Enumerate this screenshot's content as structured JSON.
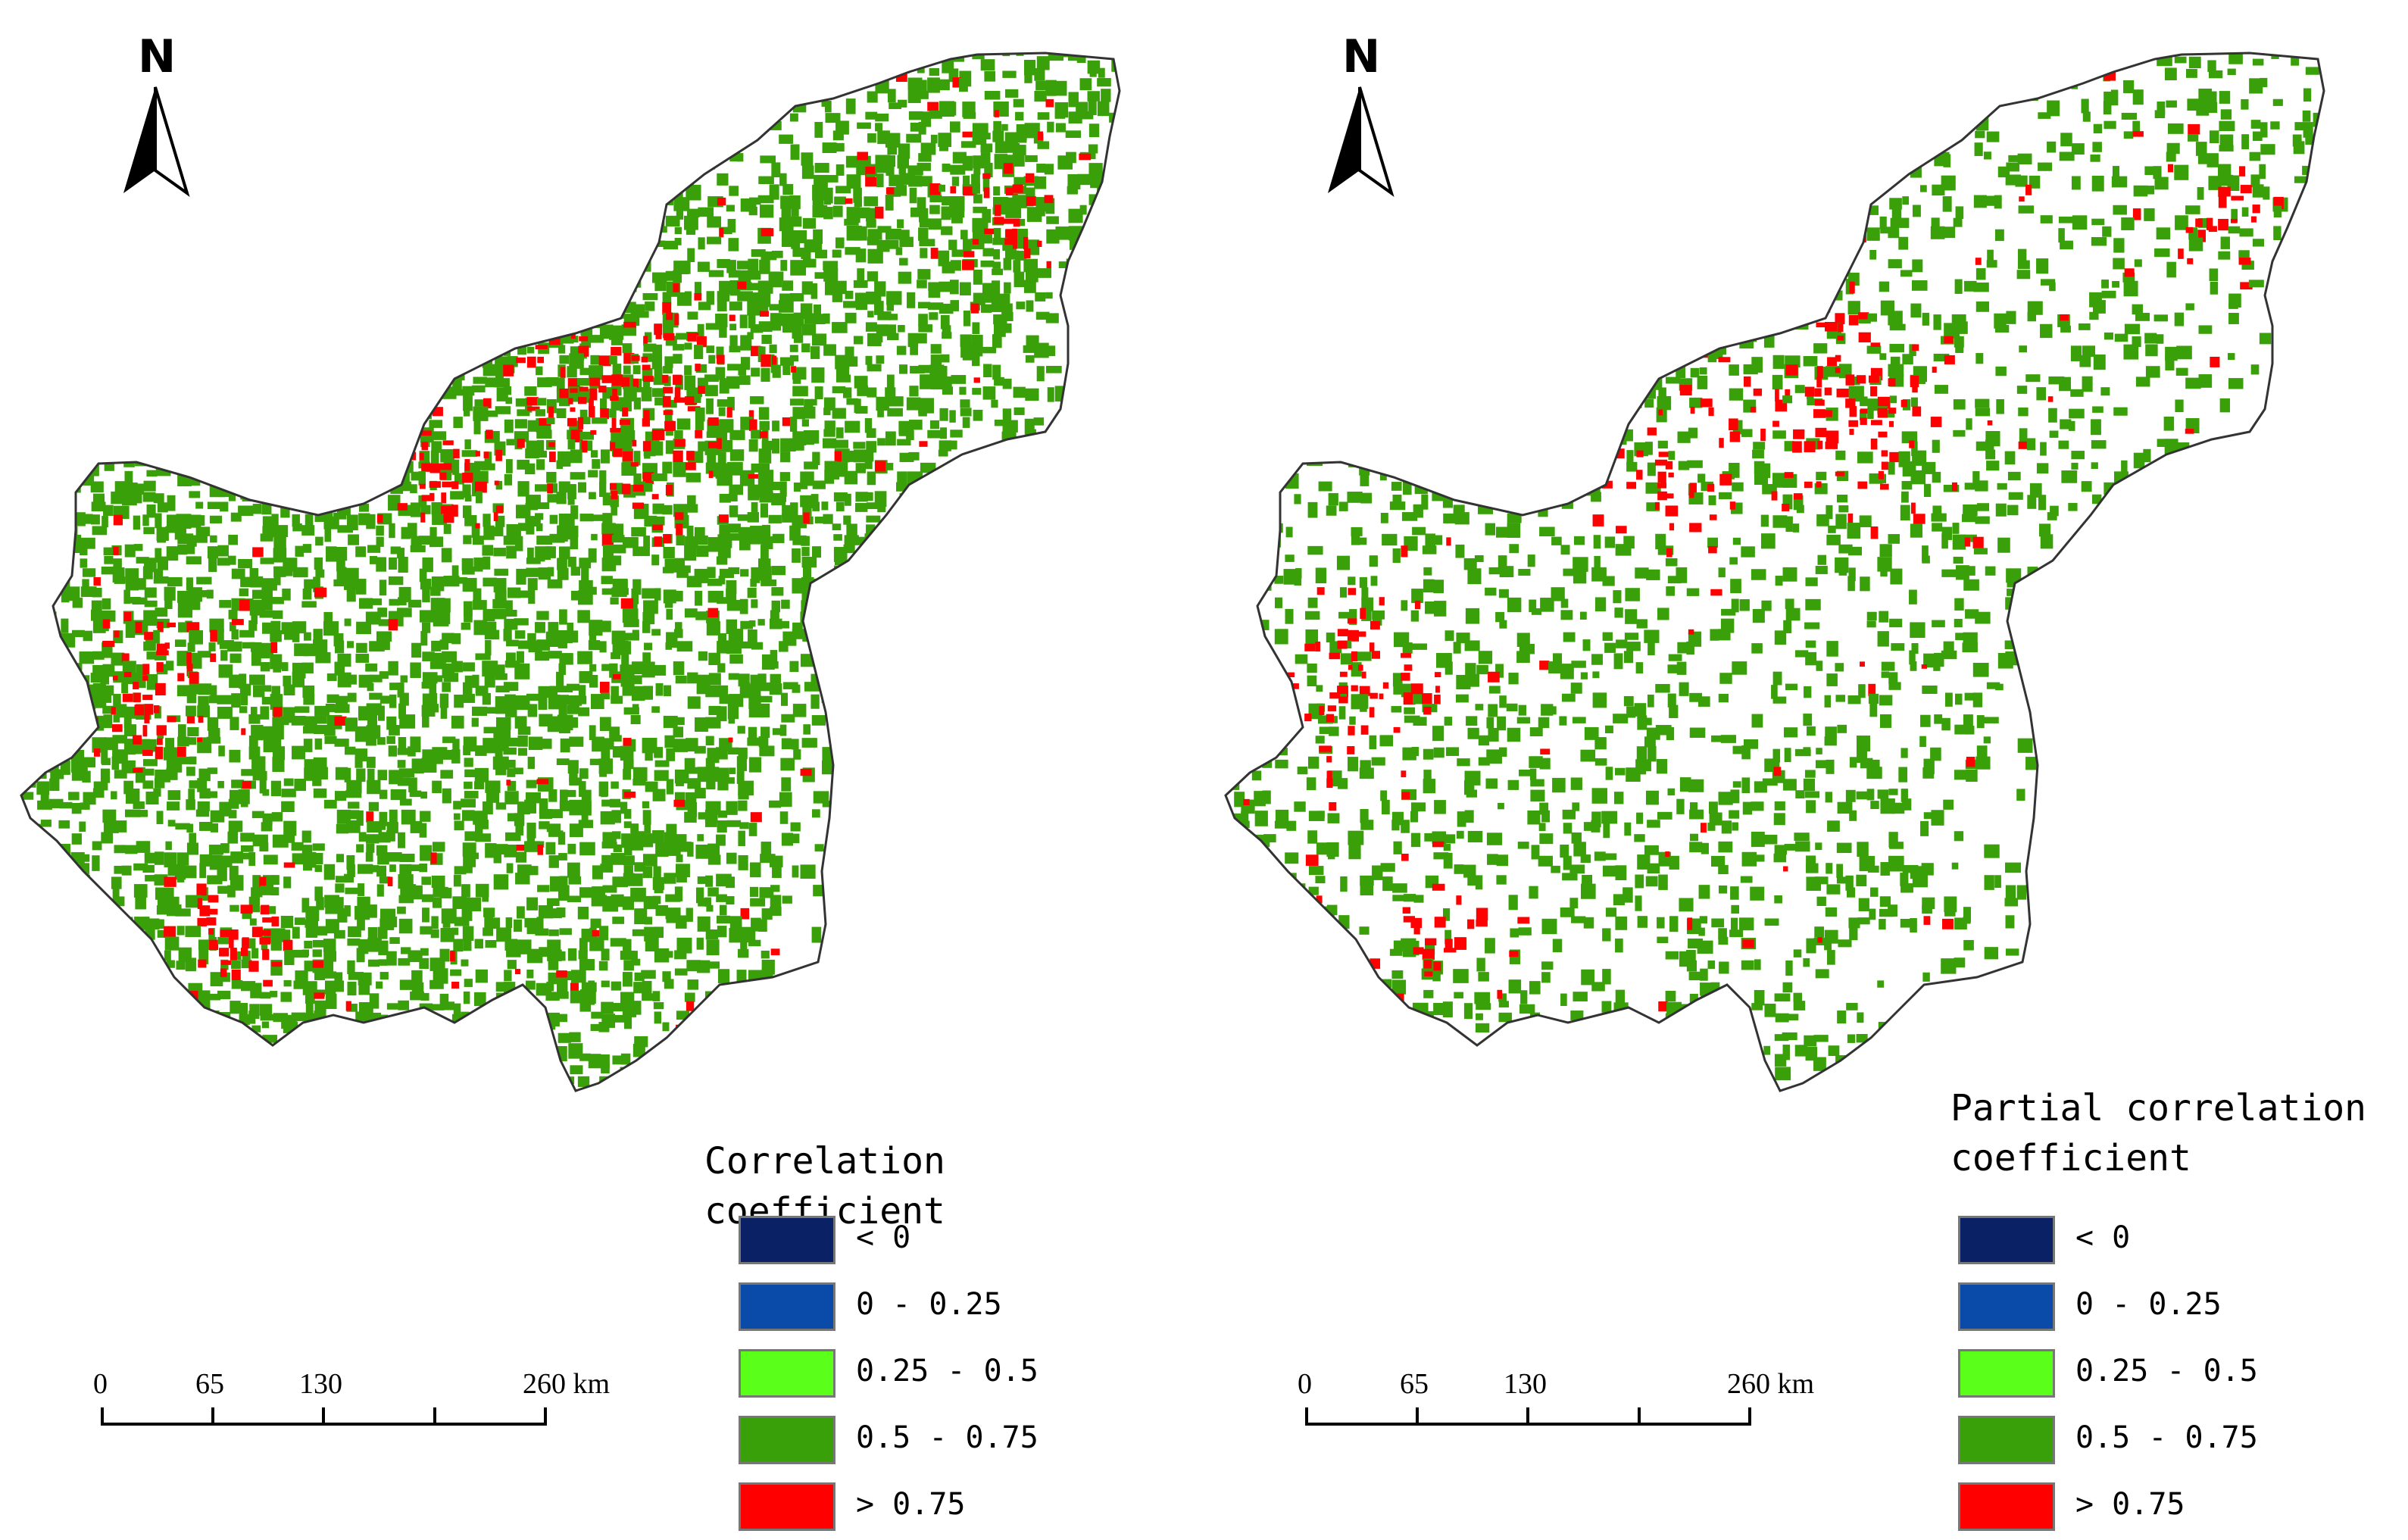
{
  "north_arrow_letter": "N",
  "colors": {
    "boundary": "#333333",
    "lt0": "#0b2166",
    "c0_025": "#0a4aa8",
    "c025_05": "#5aff1a",
    "c05_075": "#3aa00a",
    "gt075": "#ff0000"
  },
  "panels": [
    {
      "legend_title_lines": [
        "Correlation coefficient"
      ],
      "legend_items": [
        {
          "label": "< 0",
          "color": "#0b2166"
        },
        {
          "label": "0 - 0.25",
          "color": "#0a4aa8"
        },
        {
          "label": "0.25 - 0.5",
          "color": "#5aff1a"
        },
        {
          "label": "0.5 - 0.75",
          "color": "#3aa00a"
        },
        {
          "label": "> 0.75",
          "color": "#ff0000"
        }
      ],
      "scale_labels": [
        "0",
        "65",
        "130",
        "260 km"
      ],
      "green_density": 0.55,
      "red_density": 0.07
    },
    {
      "legend_title_lines": [
        "Partial correlation",
        "coefficient"
      ],
      "legend_items": [
        {
          "label": "< 0",
          "color": "#0b2166"
        },
        {
          "label": "0 - 0.25",
          "color": "#0a4aa8"
        },
        {
          "label": "0.25 - 0.5",
          "color": "#5aff1a"
        },
        {
          "label": "0.5 - 0.75",
          "color": "#3aa00a"
        },
        {
          "label": "> 0.75",
          "color": "#ff0000"
        }
      ],
      "scale_labels": [
        "0",
        "65",
        "130",
        "260 km"
      ],
      "green_density": 0.28,
      "red_density": 0.04
    }
  ]
}
